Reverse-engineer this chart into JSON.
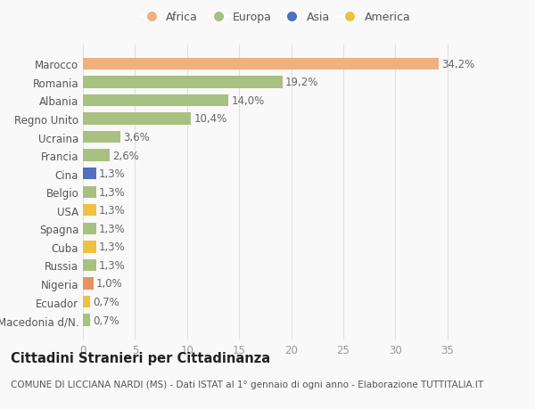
{
  "categories": [
    "Macedonia d/N.",
    "Ecuador",
    "Nigeria",
    "Russia",
    "Cuba",
    "Spagna",
    "USA",
    "Belgio",
    "Cina",
    "Francia",
    "Ucraina",
    "Regno Unito",
    "Albania",
    "Romania",
    "Marocco"
  ],
  "values": [
    0.7,
    0.7,
    1.0,
    1.3,
    1.3,
    1.3,
    1.3,
    1.3,
    1.3,
    2.6,
    3.6,
    10.4,
    14.0,
    19.2,
    34.2
  ],
  "labels": [
    "0,7%",
    "0,7%",
    "1,0%",
    "1,3%",
    "1,3%",
    "1,3%",
    "1,3%",
    "1,3%",
    "1,3%",
    "2,6%",
    "3,6%",
    "10,4%",
    "14,0%",
    "19,2%",
    "34,2%"
  ],
  "colors": [
    "#a8c080",
    "#f0c040",
    "#e89060",
    "#a8c080",
    "#f0c040",
    "#a8c080",
    "#f0c040",
    "#a8c080",
    "#5070c0",
    "#a8c080",
    "#a8c080",
    "#a8c080",
    "#a8c080",
    "#a8c080",
    "#f0b080"
  ],
  "legend_labels": [
    "Africa",
    "Europa",
    "Asia",
    "America"
  ],
  "legend_colors": [
    "#f0b080",
    "#a8c080",
    "#5070c0",
    "#f0c040"
  ],
  "xlim": [
    0,
    37
  ],
  "xticks": [
    0,
    5,
    10,
    15,
    20,
    25,
    30,
    35
  ],
  "title": "Cittadini Stranieri per Cittadinanza",
  "subtitle": "COMUNE DI LICCIANA NARDI (MS) - Dati ISTAT al 1° gennaio di ogni anno - Elaborazione TUTTITALIA.IT",
  "bg_color": "#f9f9f9",
  "bar_height": 0.65,
  "grid_color": "#e0e0e0",
  "label_fontsize": 8.5,
  "tick_fontsize": 8.5,
  "title_fontsize": 10.5,
  "subtitle_fontsize": 7.5
}
